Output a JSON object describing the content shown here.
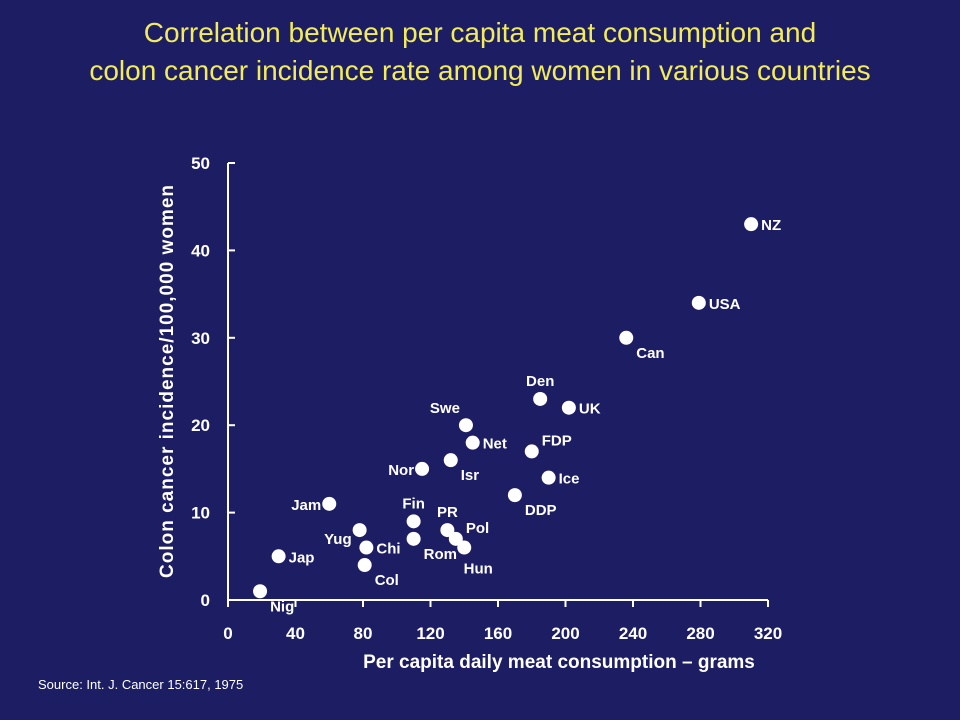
{
  "title": {
    "line1": "Correlation between per capita meat consumption and",
    "line2": "colon cancer incidence rate among women in various countries"
  },
  "source": "Source: Int. J. Cancer 15:617, 1975",
  "colors": {
    "background": "#1c1d62",
    "title": "#f2ec5a",
    "foreground": "#ffffff"
  },
  "chart_data": {
    "type": "scatter",
    "xlabel": "Per capita daily meat consumption – grams",
    "ylabel": "Colon cancer incidence/100,000 women",
    "xlim": [
      0,
      320
    ],
    "ylim": [
      0,
      50
    ],
    "xticks": [
      0,
      40,
      80,
      120,
      160,
      200,
      240,
      280,
      320
    ],
    "yticks": [
      0,
      10,
      20,
      30,
      40,
      50
    ],
    "grid": false,
    "points": [
      {
        "label": "Nig",
        "x": 19,
        "y": 1,
        "pos": "right-below"
      },
      {
        "label": "Jap",
        "x": 30,
        "y": 5,
        "pos": "right"
      },
      {
        "label": "Jam",
        "x": 60,
        "y": 11,
        "pos": "left"
      },
      {
        "label": "Yug",
        "x": 78,
        "y": 8,
        "pos": "left-below"
      },
      {
        "label": "Chi",
        "x": 82,
        "y": 6,
        "pos": "right"
      },
      {
        "label": "Col",
        "x": 81,
        "y": 4,
        "pos": "right-below"
      },
      {
        "label": "Fin",
        "x": 110,
        "y": 9,
        "pos": "above"
      },
      {
        "label": "Rom",
        "x": 110,
        "y": 7,
        "pos": "right-below"
      },
      {
        "label": "Nor",
        "x": 115,
        "y": 15,
        "pos": "left"
      },
      {
        "label": "PR",
        "x": 130,
        "y": 8,
        "pos": "above"
      },
      {
        "label": "Pol",
        "x": 135,
        "y": 7,
        "pos": "right-above"
      },
      {
        "label": "Hun",
        "x": 140,
        "y": 6,
        "pos": "below"
      },
      {
        "label": "Isr",
        "x": 132,
        "y": 16,
        "pos": "right-below"
      },
      {
        "label": "Swe",
        "x": 141,
        "y": 20,
        "pos": "left-above"
      },
      {
        "label": "Net",
        "x": 145,
        "y": 18,
        "pos": "right"
      },
      {
        "label": "DDP",
        "x": 170,
        "y": 12,
        "pos": "right-below"
      },
      {
        "label": "FDP",
        "x": 180,
        "y": 17,
        "pos": "right-above"
      },
      {
        "label": "Den",
        "x": 185,
        "y": 23,
        "pos": "above"
      },
      {
        "label": "Ice",
        "x": 190,
        "y": 14,
        "pos": "right"
      },
      {
        "label": "UK",
        "x": 202,
        "y": 22,
        "pos": "right"
      },
      {
        "label": "Can",
        "x": 236,
        "y": 30,
        "pos": "right-below"
      },
      {
        "label": "USA",
        "x": 279,
        "y": 34,
        "pos": "right"
      },
      {
        "label": "NZ",
        "x": 310,
        "y": 43,
        "pos": "right"
      }
    ]
  }
}
